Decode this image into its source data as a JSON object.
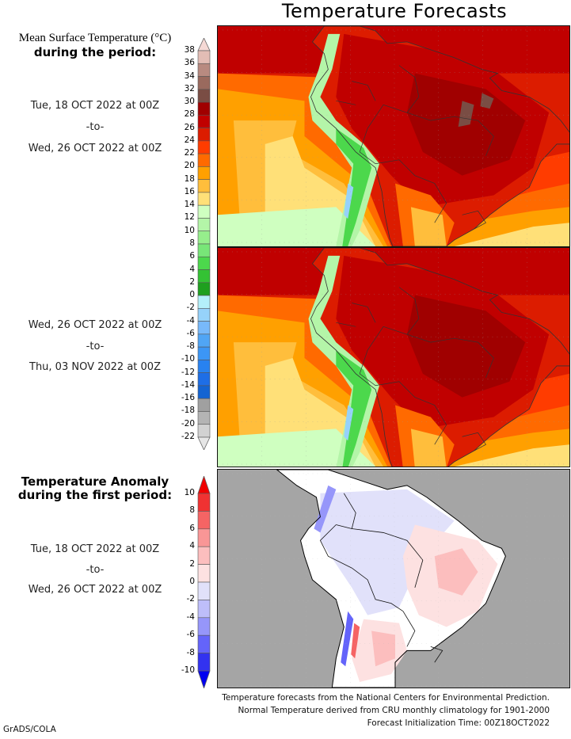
{
  "page": {
    "title": "Temperature Forecasts",
    "credit": "GrADS/COLA",
    "footer": [
      "Temperature forecasts from the National Centers for Environmental Prediction.",
      "Normal Temperature derived from CRU monthly climatology for 1901-2000",
      "Forecast Initialization Time: 00Z18OCT2022"
    ]
  },
  "panels": {
    "mean_header_line1": "Mean Surface Temperature (°C)",
    "mean_header_line2": "during the period:",
    "period1": {
      "start": "Tue, 18 OCT 2022 at 00Z",
      "sep": "-to-",
      "end": "Wed, 26 OCT 2022 at 00Z"
    },
    "period2": {
      "start": "Wed, 26 OCT 2022 at 00Z",
      "sep": "-to-",
      "end": "Thu, 03 NOV 2022 at 00Z"
    },
    "anomaly_header_line1": "Temperature Anomaly",
    "anomaly_header_line2": "during the first period:",
    "period3": {
      "start": "Tue, 18 OCT 2022 at 00Z",
      "sep": "-to-",
      "end": "Wed, 26 OCT 2022 at 00Z"
    }
  },
  "chart_data": [
    {
      "type": "heatmap",
      "title": "Mean Surface Temperature (°C) — Tue, 18 OCT 2022 at 00Z to Wed, 26 OCT 2022 at 00Z",
      "region": "South America",
      "units": "°C",
      "colorbar": "temperature",
      "summary": "Tropical interior mostly 26-30°C with patches >30°C over central Brazil; Andes 0-14°C; Pacific 14-20°C; south Atlantic 18-24°C"
    },
    {
      "type": "heatmap",
      "title": "Mean Surface Temperature (°C) — Wed, 26 OCT 2022 at 00Z to Thu, 03 NOV 2022 at 00Z",
      "region": "South America",
      "units": "°C",
      "colorbar": "temperature",
      "summary": "Tropical interior 26-30°C; Andes 0-14°C; Pacific 14-20°C; south Atlantic 18-24°C"
    },
    {
      "type": "heatmap",
      "title": "Temperature Anomaly — Tue, 18 OCT 2022 at 00Z to Wed, 26 OCT 2022 at 00Z",
      "region": "South America (land only, ocean masked gray)",
      "units": "°C",
      "colorbar": "anomaly",
      "summary": "Northwest and Amazon 0 to -2°C; eastern Brazil and Argentina 0 to +4°C; Andes mixed -10 to +10°C"
    }
  ],
  "colorbars": {
    "temperature": {
      "ticks": [
        "38",
        "36",
        "34",
        "32",
        "30",
        "28",
        "26",
        "24",
        "22",
        "20",
        "18",
        "16",
        "14",
        "12",
        "10",
        "8",
        "6",
        "4",
        "2",
        "0",
        "-2",
        "-4",
        "-6",
        "-8",
        "-10",
        "-12",
        "-14",
        "-16",
        "-18",
        "-20",
        "-22"
      ],
      "top_arrow_color": "#f5d9d5",
      "bottom_arrow_color": "#e6e6e6",
      "colors": [
        "#e2bdb5",
        "#b88a80",
        "#9a6a5e",
        "#7a4d44",
        "#a00000",
        "#c00000",
        "#dc1c00",
        "#ff3c00",
        "#ff6a00",
        "#ffa000",
        "#ffbe3c",
        "#ffe078",
        "#cfffc0",
        "#b4f5a8",
        "#96ee8c",
        "#78e678",
        "#4cd84c",
        "#34c234",
        "#1ea01e",
        "#b4f0fa",
        "#96d2fa",
        "#78b9fa",
        "#50a5f5",
        "#3c96f5",
        "#2882f0",
        "#1e6ee6",
        "#1464d2",
        "#a0a0a0",
        "#b4b4b4",
        "#d2d2d2"
      ]
    },
    "anomaly": {
      "ticks": [
        "10",
        "8",
        "6",
        "4",
        "2",
        "0",
        "-2",
        "-4",
        "-6",
        "-8",
        "-10"
      ],
      "top_arrow_color": "#f00000",
      "bottom_arrow_color": "#0000f0",
      "colors": [
        "#f03232",
        "#f56464",
        "#f99696",
        "#fcbebe",
        "#fde1e1",
        "#e1e1fa",
        "#bebefa",
        "#9696fa",
        "#6464fa",
        "#3232f0"
      ]
    }
  },
  "map_colors": {
    "ocean_mask": "#a5a5a5",
    "border": "#333333"
  }
}
